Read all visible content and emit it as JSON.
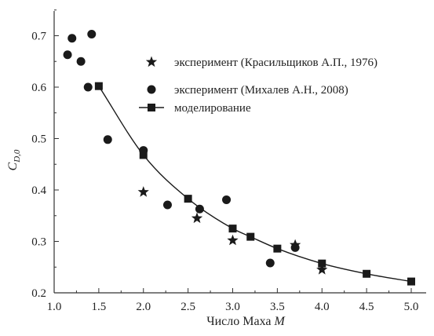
{
  "chart_data": {
    "type": "scatter",
    "xlabel_text": "Число Маха ",
    "xlabel_var": "M",
    "ylabel_main": "C",
    "ylabel_sub": "D,0",
    "xlim": [
      1.0,
      5.0
    ],
    "ylim": [
      0.2,
      0.75
    ],
    "xticks": [
      "1.0",
      "1.5",
      "2.0",
      "2.5",
      "3.0",
      "3.5",
      "4.0",
      "4.5",
      "5.0"
    ],
    "xtick_values": [
      1.0,
      1.5,
      2.0,
      2.5,
      3.0,
      3.5,
      4.0,
      4.5,
      5.0
    ],
    "yticks": [
      "0.2",
      "0.3",
      "0.4",
      "0.5",
      "0.6",
      "0.7"
    ],
    "ytick_values": [
      0.2,
      0.3,
      0.4,
      0.5,
      0.6,
      0.7
    ],
    "legend_position": "upper-right",
    "series": [
      {
        "name": "эксперимент (Красильщиков А.П., 1976)",
        "marker": "star",
        "x": [
          2.0,
          2.6,
          3.0,
          3.7,
          4.0
        ],
        "y": [
          0.396,
          0.345,
          0.302,
          0.293,
          0.245
        ]
      },
      {
        "name": "эксперимент (Михалев А.Н., 2008)",
        "marker": "circle",
        "x": [
          1.15,
          1.2,
          1.3,
          1.38,
          1.42,
          1.6,
          2.0,
          2.27,
          2.63,
          2.93,
          3.42,
          3.7
        ],
        "y": [
          0.663,
          0.695,
          0.65,
          0.6,
          0.703,
          0.498,
          0.477,
          0.371,
          0.363,
          0.381,
          0.258,
          0.288
        ]
      },
      {
        "name": "моделирование",
        "marker": "square-line",
        "x": [
          1.5,
          2.0,
          2.5,
          3.0,
          3.2,
          3.5,
          4.0,
          4.5,
          5.0
        ],
        "y": [
          0.602,
          0.468,
          0.383,
          0.325,
          0.309,
          0.286,
          0.257,
          0.237,
          0.222
        ]
      }
    ],
    "colors": {
      "marker": "#1a1a1a",
      "line": "#1a1a1a",
      "axis": "#333333"
    }
  }
}
